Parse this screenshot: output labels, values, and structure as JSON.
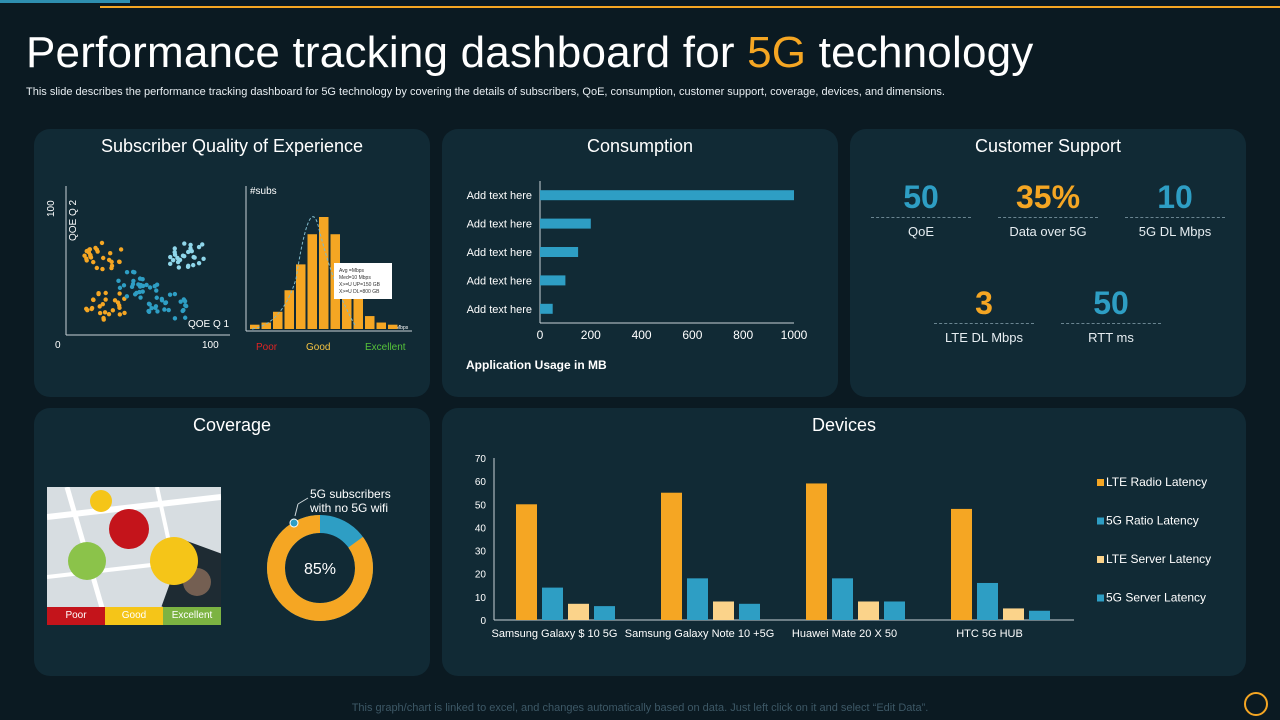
{
  "title": {
    "main": "Performance tracking dashboard for ",
    "accent": "5G",
    "end": " technology"
  },
  "subtitle": "This slide describes the performance tracking dashboard for 5G technology by covering the details of subscribers, QoE, consumption, customer support, coverage, devices, and dimensions.",
  "colors": {
    "gold": "#f5a623",
    "blue": "#2e9ec4",
    "light_orange": "#fbd38a",
    "panel": "#112a35",
    "bg": "#0b1a22"
  },
  "qoe": {
    "title": "Subscriber Quality of Experience",
    "y_label_top": "100",
    "y_axis_label": "QOE Q 2",
    "x_axis_label": "QOE Q 1",
    "origin": "0",
    "x_max": "100",
    "hist_label": "#subs",
    "hist_unit": "Mbps",
    "hist_box": [
      "Avg =Mbps",
      "Med=10 Mbps",
      "X>=U UP=150 GB",
      "X>=U DL=800 GB"
    ],
    "poor": "Poor",
    "good": "Good",
    "excellent": "Excellent",
    "hist_values": [
      2,
      3,
      8,
      18,
      30,
      44,
      52,
      44,
      30,
      18,
      6,
      3,
      2
    ]
  },
  "consumption": {
    "title": "Consumption",
    "xlabel": "Application Usage  in MB",
    "chart_data": {
      "type": "bar",
      "orientation": "horizontal",
      "categories": [
        "Add text here",
        "Add text here",
        "Add text here",
        "Add text here",
        "Add text here"
      ],
      "values": [
        1000,
        200,
        150,
        100,
        50
      ],
      "xlim": [
        0,
        1000
      ],
      "ticks": [
        "0",
        "200",
        "400",
        "600",
        "800",
        "1000"
      ],
      "tick_values": [
        0,
        200,
        400,
        600,
        800,
        1000
      ]
    }
  },
  "support": {
    "title": "Customer Support",
    "kpis": [
      {
        "value": "50",
        "label": "QoE",
        "color": "blue"
      },
      {
        "value": "35%",
        "label": "Data over 5G",
        "color": "gold"
      },
      {
        "value": "10",
        "label": "5G DL Mbps",
        "color": "blue"
      },
      {
        "value": "3",
        "label": "LTE DL Mbps",
        "color": "gold"
      },
      {
        "value": "50",
        "label": "RTT  ms",
        "color": "blue"
      }
    ]
  },
  "coverage": {
    "title": "Coverage",
    "legend": [
      "Poor",
      "Good",
      "Excellent"
    ],
    "donut_label": "5G subscribers\nwith no 5G wifi",
    "donut_line1": "5G subscribers",
    "donut_line2": "with no 5G wifi",
    "donut_value": "85%",
    "donut_fraction": 0.85
  },
  "devices": {
    "title": "Devices",
    "chart_data": {
      "type": "bar",
      "categories": [
        "Samsung Galaxy $ 10 5G",
        "Samsung Galaxy Note 10 +5G",
        "Huawei Mate 20 X 50",
        "HTC 5G HUB"
      ],
      "series": [
        {
          "name": "LTE Radio Latency",
          "values": [
            50,
            55,
            59,
            48
          ]
        },
        {
          "name": "5G Ratio Latency",
          "values": [
            14,
            18,
            18,
            16
          ]
        },
        {
          "name": "LTE Server Latency",
          "values": [
            7,
            8,
            8,
            5
          ]
        },
        {
          "name": "5G Server Latency",
          "values": [
            6,
            7,
            8,
            4
          ]
        }
      ],
      "ylim": [
        0,
        70
      ],
      "yticks": [
        "0",
        "10",
        "20",
        "30",
        "40",
        "50",
        "60",
        "70"
      ],
      "ytick_values": [
        0,
        10,
        20,
        30,
        40,
        50,
        60,
        70
      ]
    }
  },
  "footer": "This graph/chart is linked to excel, and changes automatically based on data. Just left click on it and select “Edit Data”."
}
